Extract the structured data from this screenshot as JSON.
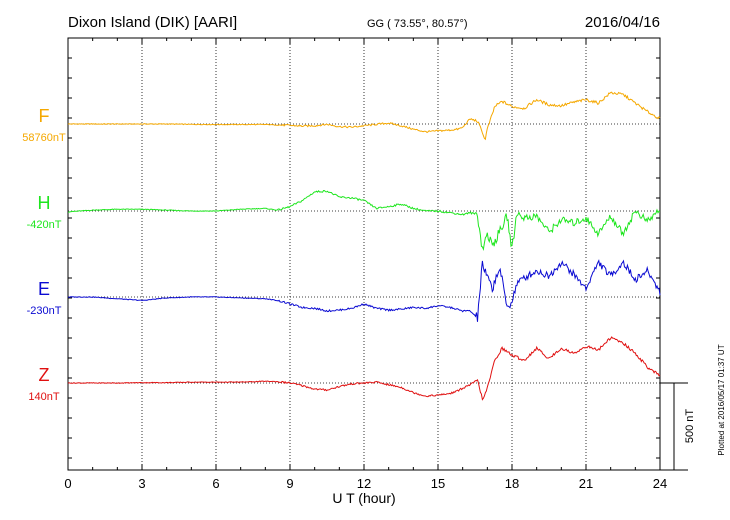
{
  "header": {
    "station": "Dixon Island (DIK)  [AARI]",
    "coords": "GG ( 73.55°,  80.57°)",
    "date": "2016/04/16"
  },
  "plotted_note": "Plotted at 2016/05/17 01:37 UT",
  "colors": {
    "F": "#f5a800",
    "H": "#1ee61e",
    "E": "#0a0ad2",
    "Z": "#e01010"
  },
  "chart_data": {
    "type": "line",
    "title": "Dixon Island (DIK)  [AARI]",
    "xlabel": "U T (hour)",
    "ylabel": "",
    "xlim": [
      0,
      24
    ],
    "xticks": [
      0,
      3,
      6,
      9,
      12,
      15,
      18,
      21,
      24
    ],
    "grid": true,
    "scale_bar": {
      "value": 500,
      "label": "500 nT"
    },
    "series": [
      {
        "name": "F",
        "baseline_label": "58760nT",
        "baseline_nT": 58760,
        "x": [
          0,
          1,
          2,
          3,
          4,
          5,
          6,
          7,
          8,
          9,
          9.5,
          10,
          10.5,
          11,
          11.5,
          12,
          12.5,
          13,
          13.5,
          14,
          14.5,
          15,
          15.5,
          15.8,
          16,
          16.3,
          16.6,
          16.8,
          16.9,
          17,
          17.3,
          17.6,
          18,
          18.5,
          19,
          19.5,
          20,
          20.5,
          21,
          21.5,
          22,
          22.5,
          23,
          23.5,
          24
        ],
        "y": [
          0,
          0,
          0,
          0,
          0,
          -2,
          -3,
          -3,
          -3,
          -8,
          -12,
          -10,
          -2,
          -15,
          -18,
          -10,
          -2,
          5,
          -10,
          -30,
          -45,
          -40,
          -35,
          -30,
          -20,
          30,
          15,
          -45,
          -95,
          -30,
          100,
          130,
          100,
          90,
          140,
          110,
          105,
          125,
          140,
          120,
          180,
          170,
          120,
          70,
          30
        ]
      },
      {
        "name": "H",
        "baseline_label": "-420nT",
        "baseline_nT": -420,
        "x": [
          0,
          1,
          2,
          3,
          4,
          5,
          6,
          7,
          8,
          8.5,
          9,
          9.5,
          10,
          10.5,
          11,
          11.5,
          12,
          12.5,
          13,
          13.5,
          14,
          14.5,
          15,
          15.5,
          16,
          16.3,
          16.6,
          16.8,
          17,
          17.2,
          17.5,
          17.8,
          18,
          18.2,
          18.5,
          19,
          19.5,
          20,
          20.5,
          21,
          21.5,
          22,
          22.5,
          23,
          23.5,
          24
        ],
        "y": [
          -5,
          5,
          10,
          10,
          5,
          0,
          0,
          10,
          15,
          5,
          25,
          60,
          110,
          115,
          80,
          75,
          60,
          15,
          25,
          40,
          15,
          0,
          0,
          -10,
          -20,
          -10,
          -20,
          -220,
          -130,
          -200,
          -120,
          -30,
          -220,
          -10,
          -40,
          -30,
          -120,
          -50,
          -70,
          -40,
          -130,
          -30,
          -130,
          0,
          -60,
          10
        ]
      },
      {
        "name": "E",
        "baseline_label": "-230nT",
        "baseline_nT": -230,
        "x": [
          0,
          1,
          2,
          3,
          4,
          5,
          6,
          7,
          8,
          8.5,
          9,
          9.5,
          10,
          10.5,
          11,
          11.5,
          12,
          12.5,
          13,
          13.5,
          14,
          14.5,
          15,
          15.5,
          16,
          16.3,
          16.6,
          16.8,
          17,
          17.2,
          17.5,
          17.8,
          18,
          18.2,
          18.5,
          19,
          19.5,
          20,
          20.5,
          21,
          21.5,
          22,
          22.5,
          23,
          23.5,
          24
        ],
        "y": [
          0,
          0,
          -10,
          -20,
          -5,
          0,
          0,
          -5,
          -10,
          -20,
          -40,
          -60,
          -65,
          -80,
          -75,
          -65,
          -40,
          -65,
          -75,
          -70,
          -60,
          -65,
          -50,
          -60,
          -80,
          -80,
          -120,
          190,
          110,
          50,
          170,
          -60,
          -25,
          80,
          110,
          150,
          120,
          200,
          130,
          50,
          200,
          120,
          200,
          100,
          150,
          30
        ]
      },
      {
        "name": "Z",
        "baseline_label": "140nT",
        "baseline_nT": 140,
        "x": [
          0,
          1,
          2,
          3,
          4,
          5,
          6,
          7,
          8,
          8.5,
          9,
          9.5,
          10,
          10.5,
          11,
          11.5,
          12,
          12.5,
          13,
          13.5,
          14,
          14.5,
          15,
          15.5,
          15.8,
          16,
          16.3,
          16.6,
          16.8,
          16.9,
          17,
          17.3,
          17.6,
          18,
          18.5,
          19,
          19.5,
          20,
          20.5,
          21,
          21.5,
          22,
          22.5,
          23,
          23.5,
          24
        ],
        "y": [
          0,
          0,
          0,
          2,
          2,
          5,
          5,
          5,
          10,
          8,
          0,
          -15,
          -35,
          -40,
          -20,
          -5,
          0,
          5,
          -10,
          -25,
          -55,
          -75,
          -70,
          -60,
          -45,
          -30,
          -10,
          15,
          -90,
          -70,
          -30,
          130,
          200,
          160,
          130,
          200,
          140,
          200,
          170,
          210,
          190,
          260,
          230,
          170,
          90,
          40
        ]
      }
    ]
  }
}
